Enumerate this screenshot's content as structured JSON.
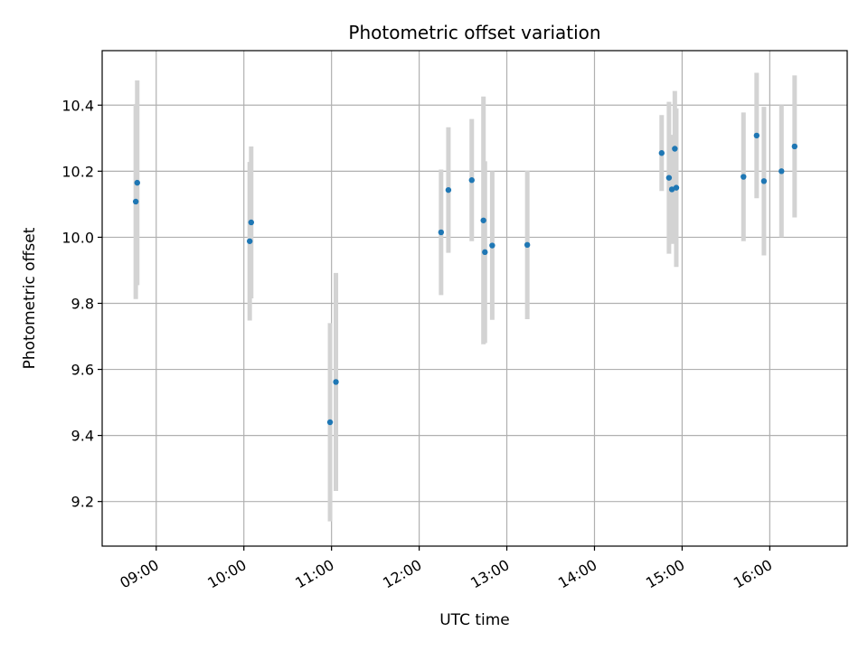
{
  "chart_data": {
    "type": "scatter",
    "title": "Photometric offset variation",
    "xlabel": "UTC time",
    "ylabel": "Photometric offset",
    "x_ticks": [
      "09:00",
      "10:00",
      "11:00",
      "12:00",
      "13:00",
      "14:00",
      "15:00",
      "16:00"
    ],
    "y_ticks": [
      "9.2",
      "9.4",
      "9.6",
      "9.8",
      "10.0",
      "10.2",
      "10.4"
    ],
    "xlim": [
      "08:23",
      "16:53"
    ],
    "ylim": [
      9.065,
      10.565
    ],
    "grid": true,
    "colors": {
      "points": "#1f77b4",
      "errorbars": "#d3d3d3",
      "grid": "#b0b0b0"
    },
    "points": [
      {
        "x": "08:46",
        "y": 10.108,
        "yerr": 0.295
      },
      {
        "x": "08:47",
        "y": 10.165,
        "yerr": 0.31
      },
      {
        "x": "10:04",
        "y": 9.988,
        "yerr": 0.24
      },
      {
        "x": "10:05",
        "y": 10.045,
        "yerr": 0.23
      },
      {
        "x": "10:59",
        "y": 9.44,
        "yerr": 0.3
      },
      {
        "x": "11:03",
        "y": 9.562,
        "yerr": 0.33
      },
      {
        "x": "12:15",
        "y": 10.015,
        "yerr": 0.19
      },
      {
        "x": "12:20",
        "y": 10.143,
        "yerr": 0.19
      },
      {
        "x": "12:36",
        "y": 10.173,
        "yerr": 0.185
      },
      {
        "x": "12:44",
        "y": 10.051,
        "yerr": 0.375
      },
      {
        "x": "12:45",
        "y": 9.955,
        "yerr": 0.275
      },
      {
        "x": "12:50",
        "y": 9.975,
        "yerr": 0.225
      },
      {
        "x": "13:14",
        "y": 9.977,
        "yerr": 0.225
      },
      {
        "x": "14:46",
        "y": 10.255,
        "yerr": 0.115
      },
      {
        "x": "14:51",
        "y": 10.18,
        "yerr": 0.23
      },
      {
        "x": "14:53",
        "y": 10.145,
        "yerr": 0.165
      },
      {
        "x": "14:55",
        "y": 10.268,
        "yerr": 0.175
      },
      {
        "x": "14:56",
        "y": 10.15,
        "yerr": 0.24
      },
      {
        "x": "15:42",
        "y": 10.183,
        "yerr": 0.195
      },
      {
        "x": "15:51",
        "y": 10.308,
        "yerr": 0.19
      },
      {
        "x": "15:56",
        "y": 10.17,
        "yerr": 0.225
      },
      {
        "x": "16:08",
        "y": 10.2,
        "yerr": 0.2
      },
      {
        "x": "16:17",
        "y": 10.275,
        "yerr": 0.215
      }
    ]
  }
}
